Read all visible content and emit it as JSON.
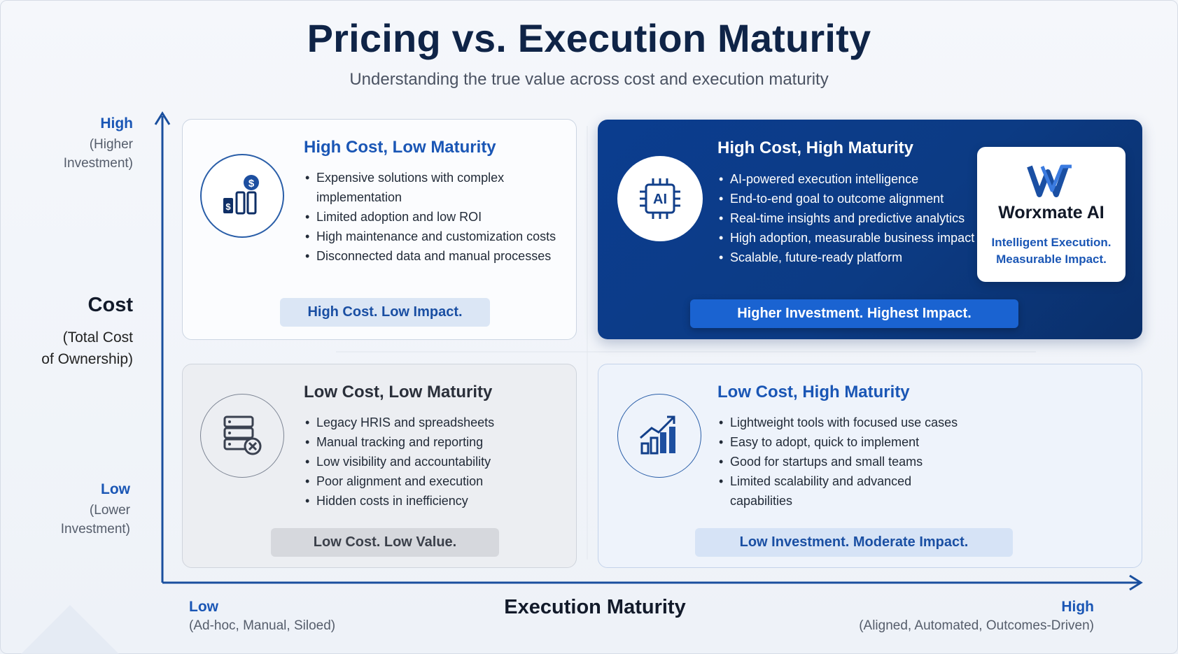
{
  "title": "Pricing vs. Execution Maturity",
  "subtitle": "Understanding the true value across cost and execution maturity",
  "y_axis": {
    "high": "High",
    "high_sub_1": "(Higher",
    "high_sub_2": "Investment)",
    "title": "Cost",
    "title_sub_1": "(Total Cost",
    "title_sub_2": "of Ownership)",
    "low": "Low",
    "low_sub_1": "(Lower",
    "low_sub_2": "Investment)"
  },
  "x_axis": {
    "low": "Low",
    "low_sub": "(Ad-hoc, Manual, Siloed)",
    "title": "Execution Maturity",
    "high": "High",
    "high_sub": "(Aligned, Automated, Outcomes-Driven)"
  },
  "quadrants": {
    "high_cost_low_maturity": {
      "title": "High Cost, Low Maturity",
      "icon": "cost-bars-icon",
      "bullets": [
        "Expensive solutions with complex implementation",
        "Limited adoption and low ROI",
        "High maintenance and customization costs",
        "Disconnected data and manual processes"
      ],
      "tagline": "High Cost. Low Impact."
    },
    "high_cost_high_maturity": {
      "title": "High Cost, High Maturity",
      "icon": "ai-chip-icon",
      "icon_text": "AI",
      "bullets": [
        "AI-powered execution intelligence",
        "End-to-end goal to outcome alignment",
        "Real-time insights and predictive analytics",
        "High adoption, measurable business impact",
        "Scalable, future-ready platform"
      ],
      "tagline": "Higher Investment. Highest Impact.",
      "brand": {
        "name": "Worxmate AI",
        "tagline_1": "Intelligent Execution.",
        "tagline_2": "Measurable Impact."
      }
    },
    "low_cost_low_maturity": {
      "title": "Low Cost, Low Maturity",
      "icon": "database-error-icon",
      "bullets": [
        "Legacy HRIS and spreadsheets",
        "Manual tracking and reporting",
        "Low visibility and accountability",
        "Poor alignment and execution",
        "Hidden costs in inefficiency"
      ],
      "tagline": "Low Cost. Low Value."
    },
    "low_cost_high_maturity": {
      "title": "Low Cost, High Maturity",
      "icon": "growth-chart-icon",
      "bullets": [
        "Lightweight tools with focused use cases",
        "Easy to adopt, quick to implement",
        "Good for startups and small teams",
        "Limited scalability and advanced capabilities"
      ],
      "tagline": "Low Investment. Moderate Impact."
    }
  },
  "colors": {
    "accent_blue": "#1a56b5",
    "dark_navy": "#0f2447",
    "quadrant_dark": "#0c3b84"
  }
}
